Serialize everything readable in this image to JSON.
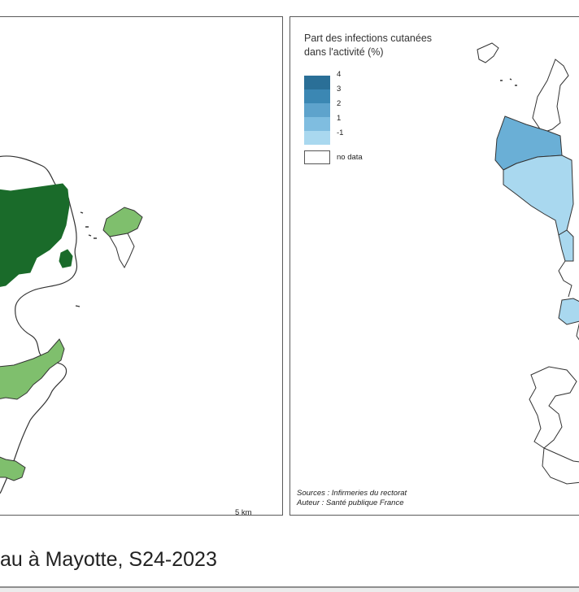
{
  "left_map": {
    "scalebar_label": "5 km",
    "colors": {
      "fill_dark": "#1a6b2a",
      "fill_light": "#7fbf6d",
      "outline": "#333333"
    }
  },
  "right_map": {
    "legend": {
      "title_line1": "Part des infections cutanées",
      "title_line2": "dans l'activité (%)",
      "ticks": [
        "4",
        "3",
        "2",
        "1",
        "-1"
      ],
      "no_data_label": "no data",
      "colors": [
        "#2a6f97",
        "#3b87b3",
        "#5ea3cc",
        "#7fbde0",
        "#a9d8ef"
      ]
    },
    "credits_sources": "Sources : Infirmeries du rectorat",
    "credits_author": "Auteur : Santé publique France",
    "colors": {
      "fill_mid": "#6aafd6",
      "fill_light": "#a9d8ef",
      "outline": "#333333"
    }
  },
  "caption": "au à Mayotte, S24-2023"
}
